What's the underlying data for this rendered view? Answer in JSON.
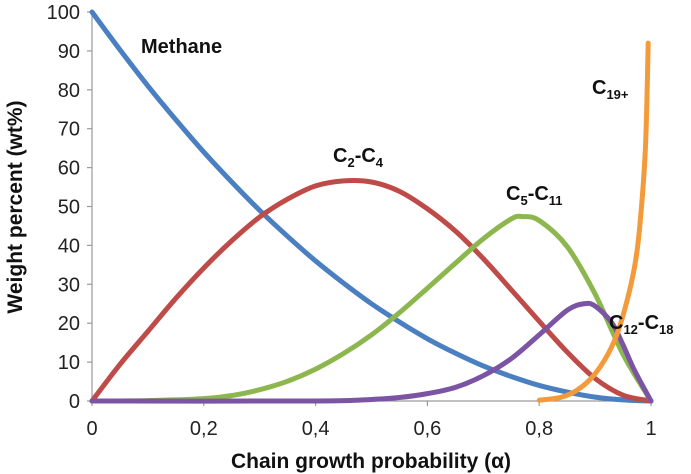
{
  "chart_data": {
    "type": "line",
    "xlabel": "Chain growth probability (α)",
    "ylabel": "Weight percent (wt%)",
    "xlim": [
      0,
      1
    ],
    "ylim": [
      0,
      100
    ],
    "x_ticks": [
      0,
      0.2,
      0.4,
      0.6,
      0.8,
      1
    ],
    "x_tick_labels": [
      "0",
      "0,2",
      "0,4",
      "0,6",
      "0,8",
      "1"
    ],
    "y_ticks": [
      0,
      10,
      20,
      30,
      40,
      50,
      60,
      70,
      80,
      90,
      100
    ],
    "y_tick_labels": [
      "0",
      "10",
      "20",
      "30",
      "40",
      "50",
      "60",
      "70",
      "80",
      "90",
      "100"
    ],
    "grid": false,
    "series": [
      {
        "name": "Methane",
        "label_main": "Methane",
        "label_sub": "",
        "label_tail": "",
        "color": "#4a7fc1",
        "x": [
          0,
          0.05,
          0.1,
          0.15,
          0.2,
          0.25,
          0.3,
          0.35,
          0.4,
          0.45,
          0.5,
          0.55,
          0.6,
          0.65,
          0.7,
          0.75,
          0.8,
          0.85,
          0.9,
          0.95,
          1
        ],
        "y": [
          100,
          90.3,
          81,
          72.3,
          64,
          56.3,
          49,
          42.3,
          36,
          30.3,
          25,
          20.3,
          16,
          12.3,
          9,
          6.3,
          4,
          2.3,
          1,
          0.3,
          0
        ]
      },
      {
        "name": "C2-C4",
        "label_main": "C",
        "label_sub": "2",
        "label_tail": "-C",
        "label_sub2": "4",
        "color": "#bf4b48",
        "x": [
          0,
          0.05,
          0.1,
          0.15,
          0.2,
          0.25,
          0.3,
          0.35,
          0.4,
          0.45,
          0.5,
          0.55,
          0.6,
          0.65,
          0.7,
          0.75,
          0.8,
          0.85,
          0.9,
          0.95,
          1
        ],
        "y": [
          0,
          9.4,
          17.9,
          26.4,
          34.2,
          41.2,
          47.3,
          51.9,
          55.3,
          56.6,
          56.3,
          53.9,
          49.4,
          43.7,
          36.6,
          28.6,
          20.5,
          12.6,
          5.8,
          1.5,
          0
        ]
      },
      {
        "name": "C5-C11",
        "label_main": "C",
        "label_sub": "5",
        "label_tail": "-C",
        "label_sub2": "11",
        "color": "#8db74e",
        "x": [
          0,
          0.1,
          0.2,
          0.25,
          0.3,
          0.35,
          0.4,
          0.45,
          0.5,
          0.55,
          0.6,
          0.65,
          0.7,
          0.75,
          0.77,
          0.8,
          0.85,
          0.9,
          0.95,
          1
        ],
        "y": [
          0,
          0.1,
          0.6,
          1.4,
          2.9,
          5.1,
          8.2,
          12.2,
          17,
          22.7,
          29,
          35.4,
          41.7,
          46.8,
          47.4,
          46.4,
          39.7,
          27.5,
          12,
          0
        ]
      },
      {
        "name": "C12-C18",
        "label_main": "C",
        "label_sub": "12",
        "label_tail": "-C",
        "label_sub2": "18",
        "color": "#7b55a3",
        "x": [
          0,
          0.4,
          0.5,
          0.55,
          0.6,
          0.65,
          0.7,
          0.75,
          0.8,
          0.85,
          0.88,
          0.9,
          0.93,
          0.95,
          0.97,
          1
        ],
        "y": [
          0,
          0,
          0.4,
          0.9,
          1.9,
          3.5,
          6.5,
          10.9,
          17,
          23.3,
          25,
          24.4,
          20.1,
          14.4,
          8,
          0
        ]
      },
      {
        "name": "C19+",
        "label_main": "C",
        "label_sub": "19+",
        "label_tail": "",
        "color": "#f39a3b",
        "x": [
          0.8,
          0.84,
          0.87,
          0.9,
          0.93,
          0.95,
          0.97,
          0.98,
          0.99,
          0.995
        ],
        "y": [
          0.2,
          1,
          3,
          7,
          14,
          22,
          34,
          45,
          65,
          92
        ]
      }
    ]
  }
}
